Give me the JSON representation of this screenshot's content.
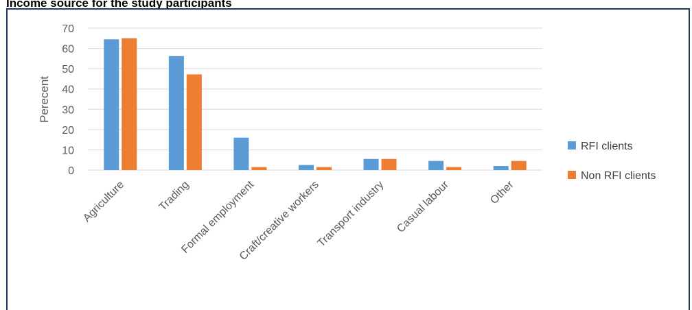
{
  "figure_title": "Income source for the study participants",
  "chart_data": {
    "type": "bar",
    "title": "",
    "xlabel": "",
    "ylabel": "Perecent",
    "ylim": [
      0,
      70
    ],
    "yticks": [
      0,
      10,
      20,
      30,
      40,
      50,
      60,
      70
    ],
    "grid": true,
    "legend_position": "right",
    "categories": [
      "Agriculture",
      "Trading",
      "Formal employment",
      "Craft/creative workers",
      "Transport industry",
      "Casual labour",
      "Other"
    ],
    "series": [
      {
        "name": "RFI clients",
        "color": "#5b9bd5",
        "values": [
          64.5,
          56.2,
          16,
          2.5,
          5.5,
          4.5,
          2
        ]
      },
      {
        "name": "Non RFI clients",
        "color": "#ed7d31",
        "values": [
          65,
          47.2,
          1.5,
          1.5,
          5.5,
          1.5,
          4.5
        ]
      }
    ]
  }
}
